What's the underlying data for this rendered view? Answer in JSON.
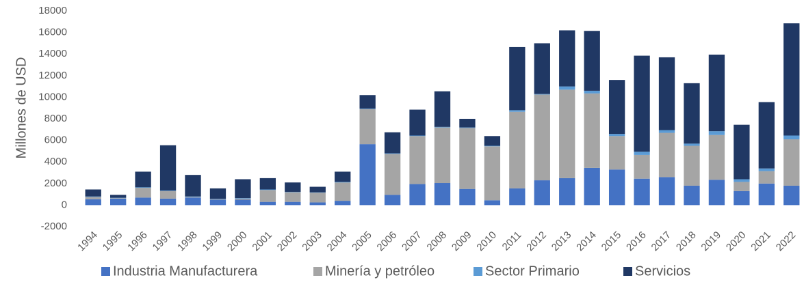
{
  "chart_data": {
    "type": "stacked_bar",
    "y_label": "Millones de USD",
    "categories": [
      "1994",
      "1995",
      "1996",
      "1997",
      "1998",
      "1999",
      "2000",
      "2001",
      "2002",
      "2003",
      "2004",
      "2005",
      "2006",
      "2007",
      "2008",
      "2009",
      "2010",
      "2011",
      "2012",
      "2013",
      "2014",
      "2015",
      "2016",
      "2017",
      "2018",
      "2019",
      "2020",
      "2021",
      "2022"
    ],
    "series": [
      {
        "name": "Industria Manufacturera",
        "color": "#4472c4",
        "values": [
          550,
          600,
          700,
          600,
          700,
          500,
          500,
          300,
          300,
          250,
          400,
          5650,
          950,
          1950,
          2050,
          1500,
          450,
          1550,
          2300,
          2500,
          3450,
          3300,
          2450,
          2600,
          1800,
          2350,
          1300,
          2000,
          1800
        ]
      },
      {
        "name": "Minería y petróleo",
        "color": "#a5a5a5",
        "values": [
          200,
          50,
          900,
          700,
          50,
          50,
          100,
          1100,
          900,
          900,
          1700,
          3250,
          3800,
          4450,
          5150,
          5650,
          5000,
          7100,
          7950,
          8200,
          6900,
          3100,
          2200,
          4100,
          3700,
          4150,
          850,
          1150,
          4300
        ]
      },
      {
        "name": "Sector Primario",
        "color": "#5b9bd5",
        "values": [
          50,
          30,
          50,
          50,
          50,
          30,
          50,
          50,
          30,
          30,
          50,
          50,
          50,
          50,
          50,
          50,
          50,
          150,
          50,
          300,
          250,
          200,
          300,
          250,
          200,
          350,
          250,
          250,
          350
        ]
      },
      {
        "name": "Servicios",
        "color": "#203864",
        "values": [
          650,
          270,
          1450,
          4200,
          2000,
          970,
          1750,
          1050,
          870,
          520,
          950,
          1250,
          1950,
          2400,
          3300,
          800,
          900,
          5850,
          4700,
          5200,
          5550,
          5000,
          8900,
          6750,
          5600,
          7100,
          5050,
          6150,
          10400
        ]
      }
    ],
    "ylim": [
      -2000,
      18000
    ],
    "yticks": [
      -2000,
      0,
      2000,
      4000,
      6000,
      8000,
      10000,
      12000,
      14000,
      16000,
      18000
    ],
    "legend": "bottom"
  }
}
